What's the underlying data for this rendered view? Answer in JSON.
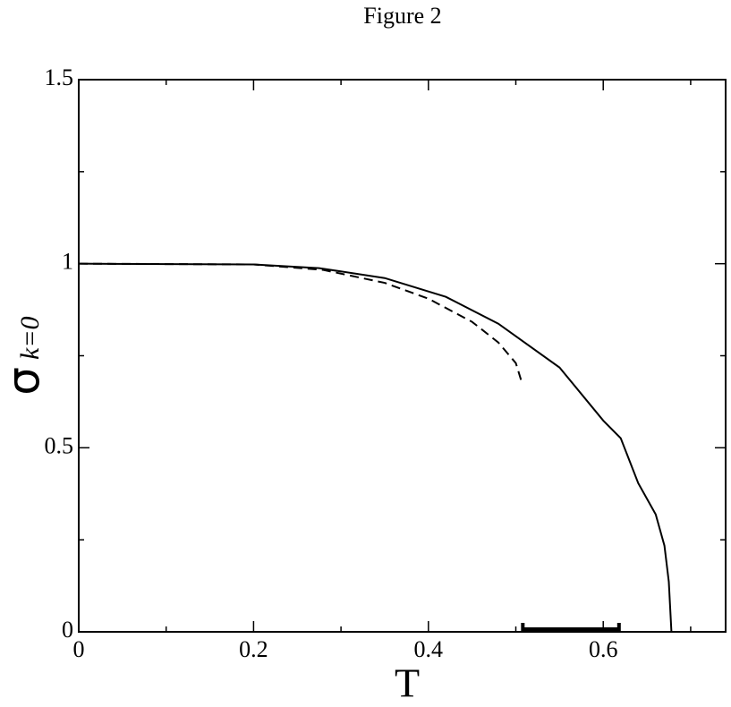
{
  "chart_data": {
    "type": "line",
    "title": "Figure 2",
    "xlabel": "T",
    "ylabel": "σ",
    "ylabel_subscript": "k=0",
    "xlim": [
      0,
      0.74
    ],
    "ylim": [
      0,
      1.5
    ],
    "xticks": [
      0,
      0.2,
      0.4,
      0.6
    ],
    "yticks": [
      0,
      0.5,
      1,
      1.5
    ],
    "xminorticks": [
      0.1,
      0.3,
      0.5,
      0.7
    ],
    "yminorticks": [
      0.25,
      0.75,
      1.25
    ],
    "series": [
      {
        "color": "#000000",
        "dash": false,
        "x": [
          0,
          0.2,
          0.275,
          0.35,
          0.42,
          0.48,
          0.55,
          0.6,
          0.62,
          0.64,
          0.66,
          0.67,
          0.675,
          0.678
        ],
        "values": [
          1,
          0.998,
          0.988,
          0.961,
          0.91,
          0.837,
          0.718,
          0.574,
          0.526,
          0.404,
          0.319,
          0.234,
          0.136,
          0
        ]
      },
      {
        "color": "#000000",
        "dash": true,
        "x": [
          0,
          0.2,
          0.28,
          0.35,
          0.4,
          0.45,
          0.48,
          0.5,
          0.506
        ],
        "values": [
          1,
          0.998,
          0.983,
          0.948,
          0.905,
          0.842,
          0.786,
          0.73,
          0.684
        ]
      }
    ],
    "interval": [
      0.508,
      0.618
    ]
  }
}
